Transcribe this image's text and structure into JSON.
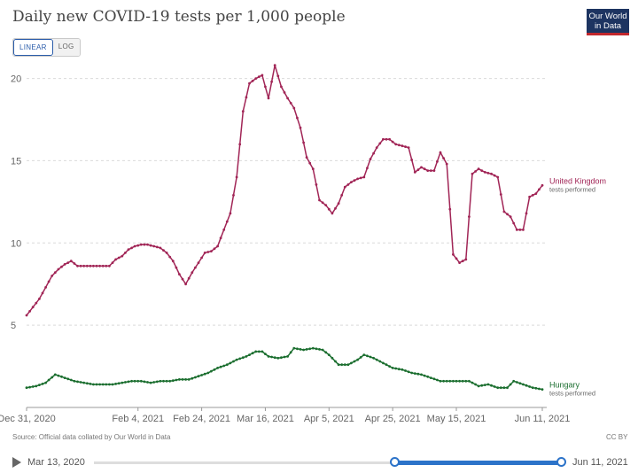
{
  "header": {
    "title": "Daily new COVID-19 tests per 1,000 people",
    "logo_line1": "Our World",
    "logo_line2": "in Data"
  },
  "scale_toggle": {
    "linear_label": "LINEAR",
    "log_label": "LOG",
    "active": "LINEAR"
  },
  "footer": {
    "source": "Source: Official data collated by Our World in Data",
    "license": "CC BY"
  },
  "timeline": {
    "start_label": "Mar 13, 2020",
    "end_label": "Jun 11, 2021",
    "selected_start": "2020-12-31",
    "selected_end": "2021-06-11"
  },
  "chart_data": {
    "type": "line",
    "title": "Daily new COVID-19 tests per 1,000 people",
    "x_start": "2020-12-31",
    "x_end": "2021-06-11",
    "xtick_labels": [
      "Dec 31, 2020",
      "Feb 4, 2021",
      "Feb 24, 2021",
      "Mar 16, 2021",
      "Apr 5, 2021",
      "Apr 25, 2021",
      "May 15, 2021",
      "Jun 11, 2021"
    ],
    "xtick_dates": [
      "2020-12-31",
      "2021-02-04",
      "2021-02-24",
      "2021-03-16",
      "2021-04-05",
      "2021-04-25",
      "2021-05-15",
      "2021-06-11"
    ],
    "yticks": [
      5,
      10,
      15,
      20
    ],
    "ylim": [
      0,
      21
    ],
    "grid": true,
    "series": [
      {
        "name": "United Kingdom",
        "sublabel": "tests performed",
        "color": "#a12556",
        "points": [
          [
            "2020-12-31",
            5.6
          ],
          [
            "2021-01-02",
            6.1
          ],
          [
            "2021-01-04",
            6.6
          ],
          [
            "2021-01-06",
            7.3
          ],
          [
            "2021-01-08",
            8.0
          ],
          [
            "2021-01-10",
            8.4
          ],
          [
            "2021-01-12",
            8.7
          ],
          [
            "2021-01-14",
            8.9
          ],
          [
            "2021-01-16",
            8.6
          ],
          [
            "2021-01-18",
            8.6
          ],
          [
            "2021-01-20",
            8.6
          ],
          [
            "2021-01-22",
            8.6
          ],
          [
            "2021-01-24",
            8.6
          ],
          [
            "2021-01-26",
            8.6
          ],
          [
            "2021-01-28",
            9.0
          ],
          [
            "2021-01-30",
            9.2
          ],
          [
            "2021-02-01",
            9.6
          ],
          [
            "2021-02-03",
            9.8
          ],
          [
            "2021-02-05",
            9.9
          ],
          [
            "2021-02-07",
            9.9
          ],
          [
            "2021-02-09",
            9.8
          ],
          [
            "2021-02-11",
            9.7
          ],
          [
            "2021-02-13",
            9.4
          ],
          [
            "2021-02-15",
            8.9
          ],
          [
            "2021-02-17",
            8.1
          ],
          [
            "2021-02-19",
            7.5
          ],
          [
            "2021-02-21",
            8.2
          ],
          [
            "2021-02-23",
            8.8
          ],
          [
            "2021-02-25",
            9.4
          ],
          [
            "2021-02-27",
            9.5
          ],
          [
            "2021-03-01",
            9.8
          ],
          [
            "2021-03-03",
            10.8
          ],
          [
            "2021-03-05",
            11.8
          ],
          [
            "2021-03-07",
            14.0
          ],
          [
            "2021-03-09",
            18.0
          ],
          [
            "2021-03-11",
            19.7
          ],
          [
            "2021-03-13",
            20.0
          ],
          [
            "2021-03-15",
            20.2
          ],
          [
            "2021-03-17",
            18.8
          ],
          [
            "2021-03-19",
            20.8
          ],
          [
            "2021-03-21",
            19.5
          ],
          [
            "2021-03-23",
            18.8
          ],
          [
            "2021-03-25",
            18.2
          ],
          [
            "2021-03-27",
            17.0
          ],
          [
            "2021-03-29",
            15.2
          ],
          [
            "2021-03-31",
            14.5
          ],
          [
            "2021-04-02",
            12.6
          ],
          [
            "2021-04-04",
            12.3
          ],
          [
            "2021-04-06",
            11.8
          ],
          [
            "2021-04-08",
            12.4
          ],
          [
            "2021-04-10",
            13.4
          ],
          [
            "2021-04-12",
            13.7
          ],
          [
            "2021-04-14",
            13.9
          ],
          [
            "2021-04-16",
            14.0
          ],
          [
            "2021-04-18",
            15.1
          ],
          [
            "2021-04-20",
            15.8
          ],
          [
            "2021-04-22",
            16.3
          ],
          [
            "2021-04-24",
            16.3
          ],
          [
            "2021-04-26",
            16.0
          ],
          [
            "2021-04-28",
            15.9
          ],
          [
            "2021-04-30",
            15.8
          ],
          [
            "2021-05-02",
            14.3
          ],
          [
            "2021-05-04",
            14.6
          ],
          [
            "2021-05-06",
            14.4
          ],
          [
            "2021-05-08",
            14.4
          ],
          [
            "2021-05-10",
            15.5
          ],
          [
            "2021-05-12",
            14.8
          ],
          [
            "2021-05-14",
            9.3
          ],
          [
            "2021-05-16",
            8.8
          ],
          [
            "2021-05-18",
            9.0
          ],
          [
            "2021-05-20",
            14.2
          ],
          [
            "2021-05-22",
            14.5
          ],
          [
            "2021-05-24",
            14.3
          ],
          [
            "2021-05-26",
            14.2
          ],
          [
            "2021-05-28",
            14.0
          ],
          [
            "2021-05-30",
            11.9
          ],
          [
            "2021-06-01",
            11.6
          ],
          [
            "2021-06-03",
            10.8
          ],
          [
            "2021-06-05",
            10.8
          ],
          [
            "2021-06-07",
            12.8
          ],
          [
            "2021-06-09",
            13.0
          ],
          [
            "2021-06-11",
            13.5
          ]
        ]
      },
      {
        "name": "Hungary",
        "sublabel": "tests performed",
        "color": "#1b6e2f",
        "points": [
          [
            "2020-12-31",
            1.2
          ],
          [
            "2021-01-03",
            1.3
          ],
          [
            "2021-01-06",
            1.5
          ],
          [
            "2021-01-09",
            2.0
          ],
          [
            "2021-01-12",
            1.8
          ],
          [
            "2021-01-15",
            1.6
          ],
          [
            "2021-01-18",
            1.5
          ],
          [
            "2021-01-21",
            1.4
          ],
          [
            "2021-01-24",
            1.4
          ],
          [
            "2021-01-27",
            1.4
          ],
          [
            "2021-01-30",
            1.5
          ],
          [
            "2021-02-02",
            1.6
          ],
          [
            "2021-02-05",
            1.6
          ],
          [
            "2021-02-08",
            1.5
          ],
          [
            "2021-02-11",
            1.6
          ],
          [
            "2021-02-14",
            1.6
          ],
          [
            "2021-02-17",
            1.7
          ],
          [
            "2021-02-20",
            1.7
          ],
          [
            "2021-02-23",
            1.9
          ],
          [
            "2021-02-26",
            2.1
          ],
          [
            "2021-03-01",
            2.4
          ],
          [
            "2021-03-04",
            2.6
          ],
          [
            "2021-03-07",
            2.9
          ],
          [
            "2021-03-10",
            3.1
          ],
          [
            "2021-03-13",
            3.4
          ],
          [
            "2021-03-15",
            3.4
          ],
          [
            "2021-03-17",
            3.1
          ],
          [
            "2021-03-20",
            3.0
          ],
          [
            "2021-03-23",
            3.1
          ],
          [
            "2021-03-25",
            3.6
          ],
          [
            "2021-03-28",
            3.5
          ],
          [
            "2021-03-31",
            3.6
          ],
          [
            "2021-04-03",
            3.5
          ],
          [
            "2021-04-05",
            3.2
          ],
          [
            "2021-04-08",
            2.6
          ],
          [
            "2021-04-11",
            2.6
          ],
          [
            "2021-04-14",
            2.9
          ],
          [
            "2021-04-16",
            3.2
          ],
          [
            "2021-04-19",
            3.0
          ],
          [
            "2021-04-22",
            2.7
          ],
          [
            "2021-04-25",
            2.4
          ],
          [
            "2021-04-28",
            2.3
          ],
          [
            "2021-05-01",
            2.1
          ],
          [
            "2021-05-04",
            2.0
          ],
          [
            "2021-05-07",
            1.8
          ],
          [
            "2021-05-10",
            1.6
          ],
          [
            "2021-05-13",
            1.6
          ],
          [
            "2021-05-16",
            1.6
          ],
          [
            "2021-05-19",
            1.6
          ],
          [
            "2021-05-22",
            1.3
          ],
          [
            "2021-05-25",
            1.4
          ],
          [
            "2021-05-28",
            1.2
          ],
          [
            "2021-05-31",
            1.2
          ],
          [
            "2021-06-02",
            1.6
          ],
          [
            "2021-06-05",
            1.4
          ],
          [
            "2021-06-08",
            1.2
          ],
          [
            "2021-06-11",
            1.1
          ]
        ]
      }
    ]
  }
}
